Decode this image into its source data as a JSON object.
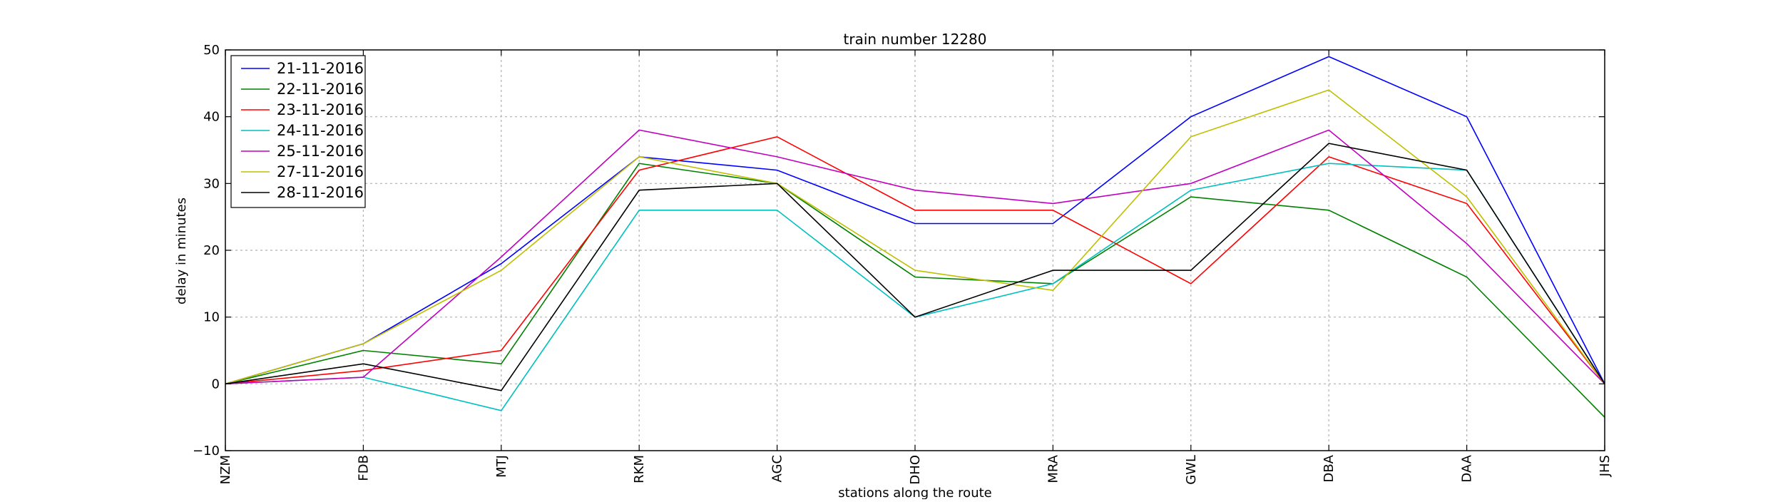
{
  "chart_data": {
    "type": "line",
    "title": "train number 12280",
    "xlabel": "stations along the route",
    "ylabel": "delay in minutes",
    "categories": [
      "NZM",
      "FDB",
      "MTJ",
      "RKM",
      "AGC",
      "DHO",
      "MRA",
      "GWL",
      "DBA",
      "DAA",
      "JHS"
    ],
    "ylim": [
      -10,
      50
    ],
    "yticks": [
      -10,
      0,
      10,
      20,
      30,
      40,
      50
    ],
    "grid": true,
    "legend_position": "top-left",
    "series": [
      {
        "name": "21-11-2016",
        "color": "#0000ff",
        "values": [
          0,
          6,
          18,
          34,
          32,
          24,
          24,
          40,
          49,
          40,
          0
        ]
      },
      {
        "name": "22-11-2016",
        "color": "#008000",
        "values": [
          0,
          5,
          3,
          33,
          30,
          16,
          15,
          28,
          26,
          16,
          -5
        ]
      },
      {
        "name": "23-11-2016",
        "color": "#ff0000",
        "values": [
          0,
          2,
          5,
          32,
          37,
          26,
          26,
          15,
          34,
          27,
          0
        ]
      },
      {
        "name": "24-11-2016",
        "color": "#00bfbf",
        "values": [
          0,
          1,
          -4,
          26,
          26,
          10,
          15,
          29,
          33,
          32,
          0
        ]
      },
      {
        "name": "25-11-2016",
        "color": "#bf00bf",
        "values": [
          0,
          1,
          19,
          38,
          34,
          29,
          27,
          30,
          38,
          21,
          0
        ]
      },
      {
        "name": "27-11-2016",
        "color": "#bfbf00",
        "values": [
          0,
          6,
          17,
          34,
          30,
          17,
          14,
          37,
          44,
          28,
          0
        ]
      },
      {
        "name": "28-11-2016",
        "color": "#000000",
        "values": [
          0,
          3,
          -1,
          29,
          30,
          10,
          17,
          17,
          36,
          32,
          0
        ]
      }
    ]
  }
}
